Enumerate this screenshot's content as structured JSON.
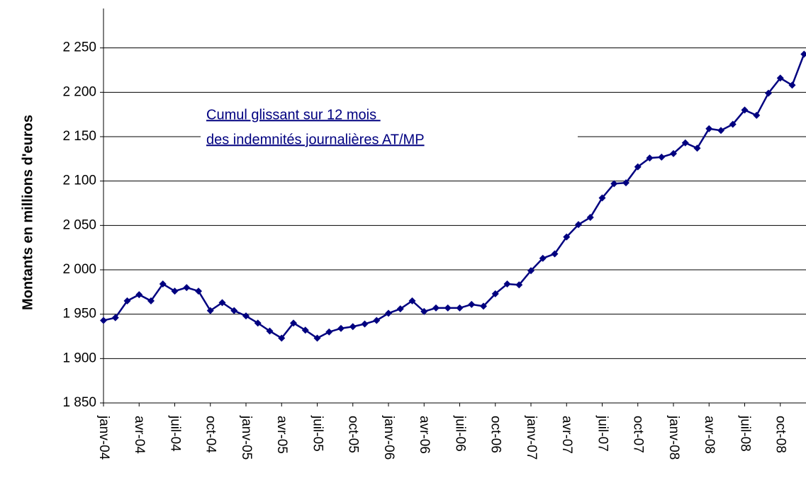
{
  "chart_data": {
    "type": "line",
    "y_label": "Montants en millions d'euros",
    "annotation": [
      "Cumul glissant sur 12 mois ",
      "des indemnités journalières AT/MP"
    ],
    "categories": [
      "janv-04",
      null,
      null,
      "avr-04",
      null,
      null,
      "juil-04",
      null,
      null,
      "oct-04",
      null,
      null,
      "janv-05",
      null,
      null,
      "avr-05",
      null,
      null,
      "juil-05",
      null,
      null,
      "oct-05",
      null,
      null,
      "janv-06",
      null,
      null,
      "avr-06",
      null,
      null,
      "juil-06",
      null,
      null,
      "oct-06",
      null,
      null,
      "janv-07",
      null,
      null,
      "avr-07",
      null,
      null,
      "juil-07",
      null,
      null,
      "oct-07",
      null,
      null,
      "janv-08",
      null,
      null,
      "avr-08",
      null,
      null,
      "juil-08",
      null,
      null,
      "oct-08",
      null,
      null
    ],
    "series": [
      {
        "name": "Cumul glissant",
        "color": "#000080",
        "values": [
          1943,
          1946,
          1965,
          1972,
          1965,
          1984,
          1976,
          1980,
          1976,
          1954,
          1963,
          1954,
          1948,
          1940,
          1931,
          1923,
          1940,
          1932,
          1923,
          1930,
          1934,
          1936,
          1939,
          1943,
          1951,
          1956,
          1965,
          1953,
          1957,
          1957,
          1957,
          1961,
          1959,
          1973,
          1984,
          1983,
          1999,
          2013,
          2018,
          2037,
          2051,
          2059,
          2081,
          2097,
          2098,
          2116,
          2126,
          2127,
          2131,
          2143,
          2137,
          2159,
          2157,
          2164,
          2180,
          2174,
          2199,
          2216,
          2208,
          2243
        ]
      }
    ],
    "ylim": [
      1850,
      2300
    ],
    "yticks": [
      {
        "value": 1850,
        "label": "1 850"
      },
      {
        "value": 1900,
        "label": "1 900"
      },
      {
        "value": 1950,
        "label": "1 950"
      },
      {
        "value": 2000,
        "label": "2 000"
      },
      {
        "value": 2050,
        "label": "2 050"
      },
      {
        "value": 2100,
        "label": "2 100"
      },
      {
        "value": 2150,
        "label": "2 150"
      },
      {
        "value": 2200,
        "label": "2 200"
      },
      {
        "value": 2250,
        "label": "2 250"
      }
    ],
    "grid": true
  }
}
